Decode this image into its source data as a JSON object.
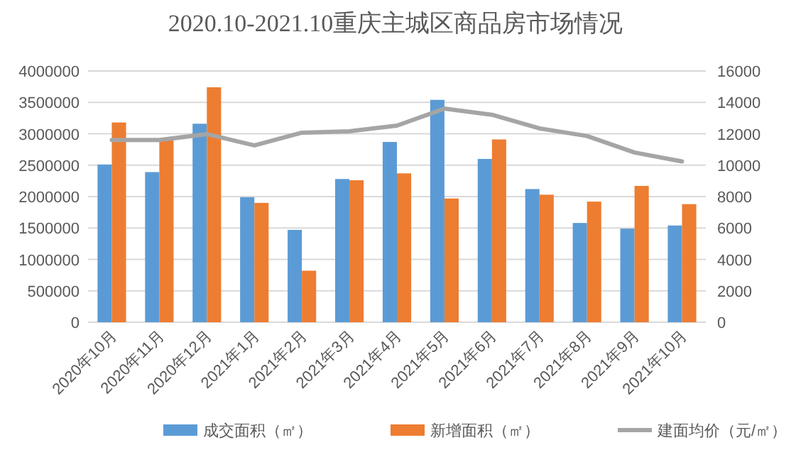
{
  "chart_data": {
    "type": "bar",
    "title": "2020.10-2021.10重庆主城区商品房市场情况",
    "categories": [
      "2020年10月",
      "2020年11月",
      "2020年12月",
      "2021年1月",
      "2021年2月",
      "2021年3月",
      "2021年4月",
      "2021年5月",
      "2021年6月",
      "2021年7月",
      "2021年8月",
      "2021年9月",
      "2021年10月"
    ],
    "series": [
      {
        "name": "成交面积（㎡）",
        "color": "#5b9bd5",
        "values": [
          2510000,
          2390000,
          3160000,
          1990000,
          1470000,
          2280000,
          2870000,
          3540000,
          2600000,
          2120000,
          1580000,
          1490000,
          1540000
        ]
      },
      {
        "name": "新增面积（㎡）",
        "color": "#ed7d31",
        "values": [
          3180000,
          2900000,
          3740000,
          1900000,
          820000,
          2260000,
          2370000,
          1970000,
          2910000,
          2030000,
          1920000,
          2170000,
          1880000
        ]
      },
      {
        "name": "建面均价（元/㎡）",
        "color": "#a5a5a5",
        "type": "line",
        "axis": "y2",
        "values": [
          11600,
          11600,
          11980,
          11260,
          12070,
          12160,
          12520,
          13600,
          13210,
          12340,
          11860,
          10810,
          10240
        ]
      }
    ],
    "ylim": [
      0,
      4000000
    ],
    "yticks": [
      0,
      500000,
      1000000,
      1500000,
      2000000,
      2500000,
      3000000,
      3500000,
      4000000
    ],
    "y2lim": [
      0,
      16000
    ],
    "y2ticks": [
      0,
      2000,
      4000,
      6000,
      8000,
      10000,
      12000,
      14000,
      16000
    ],
    "grid": "y",
    "legend": "bottom",
    "marker": "none",
    "line_style": "solid"
  }
}
